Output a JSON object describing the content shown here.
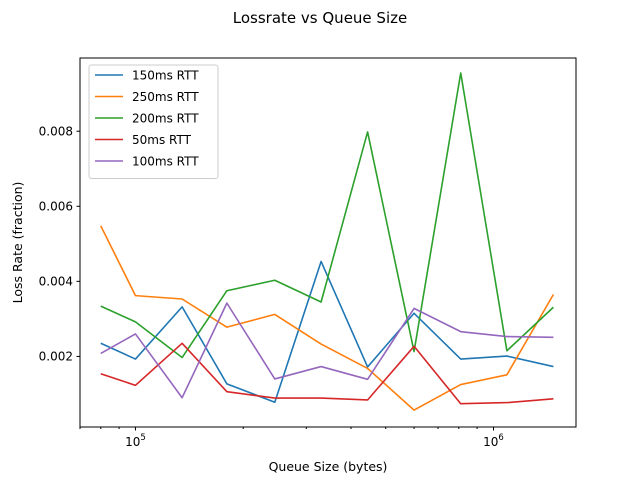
{
  "chart_data": {
    "type": "line",
    "title": "Lossrate vs Queue Size",
    "xlabel": "Queue Size (bytes)",
    "ylabel": "Loss Rate (fraction)",
    "x_scale": "log",
    "xlim": [
      70000,
      1700000
    ],
    "ylim": [
      0.00012,
      0.00995
    ],
    "x_ticks": [
      {
        "value": 100000,
        "base": "10",
        "exp": "5"
      },
      {
        "value": 1000000,
        "base": "10",
        "exp": "6"
      }
    ],
    "y_ticks": [
      {
        "value": 0.002,
        "label": "0.002"
      },
      {
        "value": 0.004,
        "label": "0.004"
      },
      {
        "value": 0.006,
        "label": "0.006"
      },
      {
        "value": 0.008,
        "label": "0.008"
      }
    ],
    "grid": false,
    "legend_position": "top-left",
    "x": [
      80000,
      100000,
      135000,
      180000,
      245000,
      330000,
      445000,
      600000,
      810000,
      1090000,
      1470000
    ],
    "series": [
      {
        "name": "150ms RTT",
        "color": "#1f77b4",
        "values": [
          0.00235,
          0.00193,
          0.00332,
          0.00127,
          0.00078,
          0.00453,
          0.00172,
          0.00315,
          0.00193,
          0.00201,
          0.00173
        ]
      },
      {
        "name": "250ms RTT",
        "color": "#ff7f0e",
        "values": [
          0.00548,
          0.00362,
          0.00353,
          0.00278,
          0.00312,
          0.00233,
          0.00168,
          0.00057,
          0.00125,
          0.00151,
          0.00365
        ]
      },
      {
        "name": "200ms RTT",
        "color": "#2ca02c",
        "values": [
          0.00334,
          0.00292,
          0.00197,
          0.00375,
          0.00403,
          0.00345,
          0.00798,
          0.00213,
          0.00955,
          0.00215,
          0.00331
        ]
      },
      {
        "name": "50ms RTT",
        "color": "#d62728",
        "values": [
          0.00154,
          0.00123,
          0.00235,
          0.00106,
          0.00089,
          0.00089,
          0.00084,
          0.00227,
          0.00074,
          0.00077,
          0.00087
        ]
      },
      {
        "name": "100ms RTT",
        "color": "#9467bd",
        "values": [
          0.00208,
          0.0026,
          0.0009,
          0.00342,
          0.0014,
          0.00173,
          0.00139,
          0.00328,
          0.00266,
          0.00253,
          0.00251
        ]
      }
    ]
  }
}
